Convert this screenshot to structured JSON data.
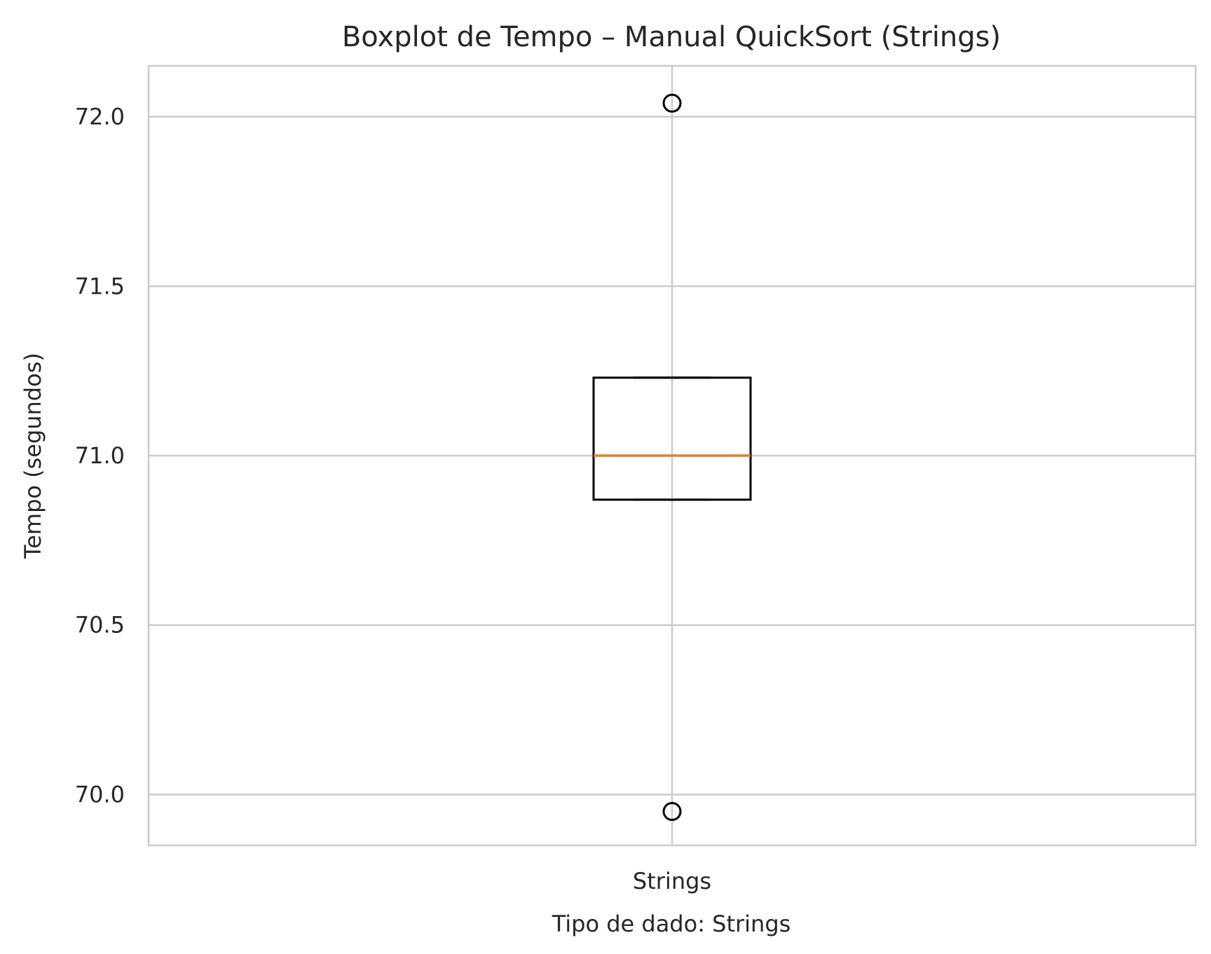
{
  "chart_data": {
    "type": "boxplot",
    "title": "Boxplot de Tempo – Manual QuickSort (Strings)",
    "xlabel": "Tipo de dado: Strings",
    "ylabel": "Tempo (segundos)",
    "categories": [
      "Strings"
    ],
    "ylim": [
      69.85,
      72.15
    ],
    "yticks": [
      70.0,
      70.5,
      71.0,
      71.5,
      72.0
    ],
    "ytick_labels": [
      "70.0",
      "70.5",
      "71.0",
      "71.5",
      "72.0"
    ],
    "grid": true,
    "boxes": [
      {
        "category": "Strings",
        "q1": 70.87,
        "median": 71.0,
        "q3": 71.23,
        "whisker_low": 70.87,
        "whisker_high": 71.23,
        "outliers": [
          72.04,
          69.95
        ]
      }
    ],
    "colors": {
      "box": "#000000",
      "median": "#e67e22",
      "grid": "#cccccc",
      "spine": "#cccccc",
      "text": "#262626"
    }
  }
}
